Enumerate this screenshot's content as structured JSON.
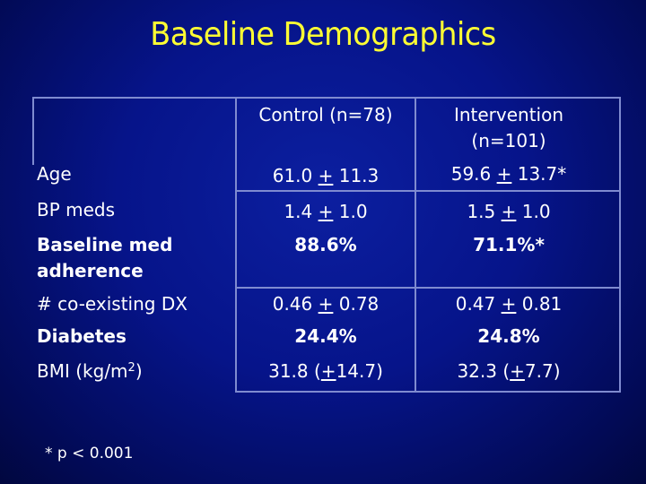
{
  "slide": {
    "title": "Baseline Demographics",
    "footnote": "* p < 0.001"
  },
  "table": {
    "headers": {
      "control": "Control (n=78)",
      "intervention_line1": "Intervention",
      "intervention_line2": "(n=101)"
    },
    "rows": [
      {
        "label": "Age",
        "control": {
          "pre": "61.0 ",
          "pm": "+",
          "post": " 11.3"
        },
        "intervention": {
          "pre": "59.6 ",
          "pm": "+",
          "post": " 13.7*"
        }
      },
      {
        "label": "BP meds",
        "control": {
          "pre": "1.4 ",
          "pm": "+",
          "post": " 1.0"
        },
        "intervention": {
          "pre": "1.5 ",
          "pm": "+",
          "post": " 1.0"
        }
      },
      {
        "label_line1": "Baseline med",
        "label_line2": "adherence",
        "control": "88.6%",
        "intervention": "71.1%*"
      },
      {
        "label": "# co-existing DX",
        "control": {
          "pre": "0.46 ",
          "pm": "+",
          "post": " 0.78"
        },
        "intervention": {
          "pre": "0.47 ",
          "pm": "+",
          "post": " 0.81"
        }
      },
      {
        "label": "Diabetes",
        "control": "24.4%",
        "intervention": "24.8%"
      },
      {
        "label_pre": "BMI (kg/m",
        "label_sup": "2",
        "label_post": ")",
        "control": {
          "pre": "31.8 (",
          "pm": "+",
          "post": "14.7)"
        },
        "intervention": {
          "pre": "32.3 (",
          "pm": "+",
          "post": "7.7)"
        }
      }
    ]
  },
  "colors": {
    "background": "#06148a",
    "title": "#ffff33",
    "text": "#ffffff",
    "rules": "#7f8bd0"
  }
}
